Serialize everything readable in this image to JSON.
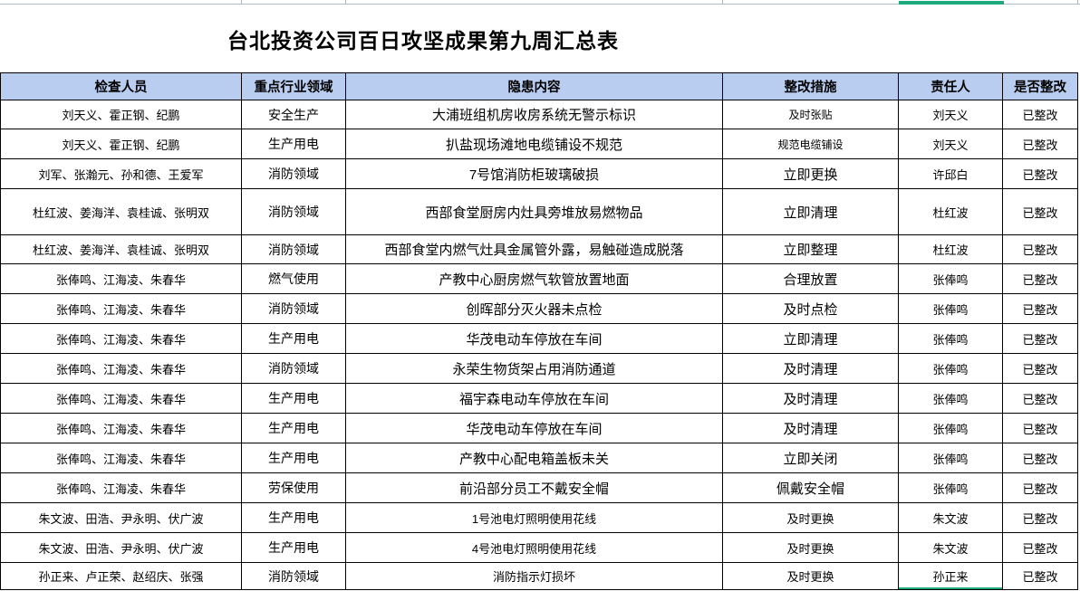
{
  "title": "台北投资公司百日攻坚成果第九周汇总表",
  "columns": [
    "检查人员",
    "重点行业领域",
    "隐患内容",
    "整改措施",
    "责任人",
    "是否整改"
  ],
  "rows": [
    {
      "inspectors": "刘天义、霍正钢、纪鹏",
      "field": "安全生产",
      "hazard": "大浦班组机房收房系统无警示标识",
      "measure": "及时张贴",
      "owner": "刘天义",
      "status": "已整改"
    },
    {
      "inspectors": "刘天义、霍正钢、纪鹏",
      "field": "生产用电",
      "hazard": "扒盐现场滩地电缆铺设不规范",
      "measure": "规范电缆铺设",
      "owner": "刘天义",
      "status": "已整改"
    },
    {
      "inspectors": "刘军、张瀚元、孙和德、王爱军",
      "field": "消防领域",
      "hazard": "7号馆消防柜玻璃破损",
      "measure": "立即更换",
      "owner": "许邱白",
      "status": "已整改"
    },
    {
      "inspectors": "杜红波、姜海洋、袁桂诚、张明双",
      "field": "消防领域",
      "hazard": "西部食堂厨房内灶具旁堆放易燃物品",
      "measure": "立即清理",
      "owner": "杜红波",
      "status": "已整改"
    },
    {
      "inspectors": "杜红波、姜海洋、袁桂诚、张明双",
      "field": "消防领域",
      "hazard": "西部食堂内燃气灶具金属管外露，易触碰造成脱落",
      "measure": "立即整理",
      "owner": "杜红波",
      "status": "已整改"
    },
    {
      "inspectors": "张俸鸣、江海凌、朱春华",
      "field": "燃气使用",
      "hazard": "产教中心厨房燃气软管放置地面",
      "measure": "合理放置",
      "owner": "张俸鸣",
      "status": "已整改"
    },
    {
      "inspectors": "张俸鸣、江海凌、朱春华",
      "field": "消防领域",
      "hazard": "创晖部分灭火器未点检",
      "measure": "及时点检",
      "owner": "张俸鸣",
      "status": "已整改"
    },
    {
      "inspectors": "张俸鸣、江海凌、朱春华",
      "field": "生产用电",
      "hazard": "华茂电动车停放在车间",
      "measure": "立即清理",
      "owner": "张俸鸣",
      "status": "已整改"
    },
    {
      "inspectors": "张俸鸣、江海凌、朱春华",
      "field": "消防领域",
      "hazard": "永荣生物货架占用消防通道",
      "measure": "及时清理",
      "owner": "张俸鸣",
      "status": "已整改"
    },
    {
      "inspectors": "张俸鸣、江海凌、朱春华",
      "field": "生产用电",
      "hazard": "福宇森电动车停放在车间",
      "measure": "及时清理",
      "owner": "张俸鸣",
      "status": "已整改"
    },
    {
      "inspectors": "张俸鸣、江海凌、朱春华",
      "field": "生产用电",
      "hazard": "华茂电动车停放在车间",
      "measure": "及时清理",
      "owner": "张俸鸣",
      "status": "已整改"
    },
    {
      "inspectors": "张俸鸣、江海凌、朱春华",
      "field": "生产用电",
      "hazard": "产教中心配电箱盖板未关",
      "measure": "立即关闭",
      "owner": "张俸鸣",
      "status": "已整改"
    },
    {
      "inspectors": "张俸鸣、江海凌、朱春华",
      "field": "劳保使用",
      "hazard": "前沿部分员工不戴安全帽",
      "measure": "佩戴安全帽",
      "owner": "张俸鸣",
      "status": "已整改"
    },
    {
      "inspectors": "朱文波、田浩、尹永明、伏广波",
      "field": "生产用电",
      "hazard": "1号池电灯照明使用花线",
      "measure": "及时更换",
      "owner": "朱文波",
      "status": "已整改"
    },
    {
      "inspectors": "朱文波、田浩、尹永明、伏广波",
      "field": "生产用电",
      "hazard": "4号池电灯照明使用花线",
      "measure": "及时更换",
      "owner": "朱文波",
      "status": "已整改"
    },
    {
      "inspectors": "孙正来、卢正荣、赵绍庆、张强",
      "field": "消防领域",
      "hazard": "消防指示灯损坏",
      "measure": "及时更换",
      "owner": "孙正来",
      "status": "已整改"
    }
  ],
  "selection": {
    "selected_column": "责任人",
    "selected_cell_value": "孙正来"
  },
  "colors": {
    "header_bg": "#b9cdf0",
    "selection_green": "#1faa7d",
    "gridline": "#b2b9c9",
    "border": "#000000"
  }
}
